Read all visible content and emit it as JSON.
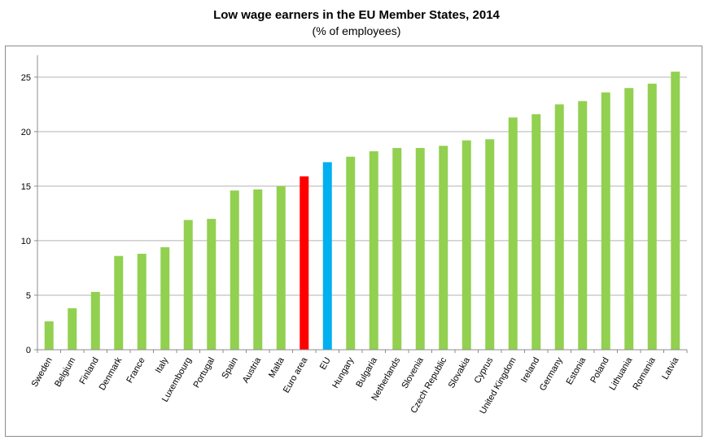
{
  "chart_data": {
    "type": "bar",
    "title": "Low wage earners in the EU Member States, 2014",
    "subtitle": "(% of employees)",
    "xlabel": "",
    "ylabel": "",
    "ylim": [
      0,
      27
    ],
    "yticks": [
      0,
      5,
      10,
      15,
      20,
      25
    ],
    "grid": true,
    "categories": [
      "Sweden",
      "Belgium",
      "Finland",
      "Denmark",
      "France",
      "Italy",
      "Luxembourg",
      "Portugal",
      "Spain",
      "Austria",
      "Malta",
      "Euro area",
      "EU",
      "Hungary",
      "Bulgaria",
      "Netherlands",
      "Slovenia",
      "Czech Republic",
      "Slovakia",
      "Cyprus",
      "United Kingdom",
      "Ireland",
      "Germany",
      "Estonia",
      "Poland",
      "Lithuania",
      "Romania",
      "Latvia"
    ],
    "values": [
      2.6,
      3.8,
      5.3,
      8.6,
      8.8,
      9.4,
      11.9,
      12.0,
      14.6,
      14.7,
      15.0,
      15.9,
      17.2,
      17.7,
      18.2,
      18.5,
      18.5,
      18.7,
      19.2,
      19.3,
      21.3,
      21.6,
      22.5,
      22.8,
      23.6,
      24.0,
      24.4,
      25.5
    ],
    "colors": {
      "default": "#92d050",
      "Euro area": "#ff0000",
      "EU": "#00b0f0",
      "grid": "#b3b3b3",
      "axis": "#8c8c8c"
    }
  }
}
